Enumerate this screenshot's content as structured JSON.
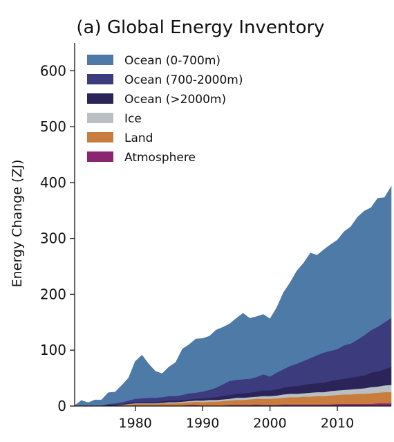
{
  "chart_data": {
    "type": "area",
    "stacked": true,
    "title": "(a) Global Energy Inventory",
    "xlabel": "",
    "ylabel": "Energy Change (ZJ)",
    "xlim": [
      1971,
      2018
    ],
    "ylim": [
      0,
      650
    ],
    "xticks": [
      1980,
      1990,
      2000,
      2010
    ],
    "yticks": [
      0,
      100,
      200,
      300,
      400,
      500,
      600
    ],
    "grid": false,
    "legend_position": "top-left",
    "x": [
      1971,
      1972,
      1973,
      1974,
      1975,
      1976,
      1977,
      1978,
      1979,
      1980,
      1981,
      1982,
      1983,
      1984,
      1985,
      1986,
      1987,
      1988,
      1989,
      1990,
      1991,
      1992,
      1993,
      1994,
      1995,
      1996,
      1997,
      1998,
      1999,
      2000,
      2001,
      2002,
      2003,
      2004,
      2005,
      2006,
      2007,
      2008,
      2009,
      2010,
      2011,
      2012,
      2013,
      2014,
      2015,
      2016,
      2017,
      2018
    ],
    "series": [
      {
        "name": "Atmosphere",
        "color": "#8b2471",
        "values": [
          0,
          0,
          0,
          0,
          0,
          0,
          0,
          0,
          1,
          1,
          1,
          1,
          1,
          1,
          1,
          1,
          1,
          2,
          2,
          1,
          1,
          1,
          1,
          2,
          2,
          2,
          2,
          3,
          2,
          2,
          2,
          3,
          3,
          3,
          3,
          3,
          3,
          3,
          3,
          4,
          4,
          4,
          4,
          4,
          4,
          5,
          5,
          5
        ]
      },
      {
        "name": "Land",
        "color": "#c97d3d",
        "values": [
          0,
          0,
          0,
          0,
          0,
          1,
          1,
          2,
          2,
          3,
          3,
          3,
          3,
          4,
          4,
          4,
          5,
          5,
          6,
          6,
          7,
          7,
          8,
          8,
          9,
          9,
          10,
          10,
          11,
          11,
          12,
          12,
          13,
          13,
          14,
          14,
          15,
          15,
          16,
          16,
          17,
          17,
          18,
          18,
          19,
          19,
          20,
          20
        ]
      },
      {
        "name": "Ice",
        "color": "#b9bfc2",
        "values": [
          0,
          0,
          0,
          0,
          0,
          0,
          0,
          0,
          1,
          1,
          1,
          1,
          1,
          1,
          2,
          2,
          2,
          2,
          2,
          3,
          3,
          3,
          3,
          3,
          4,
          4,
          4,
          4,
          5,
          5,
          5,
          6,
          6,
          6,
          6,
          7,
          7,
          7,
          8,
          8,
          8,
          9,
          9,
          10,
          11,
          11,
          12,
          13
        ]
      },
      {
        "name": "Ocean (>2000m)",
        "color": "#2b2459",
        "values": [
          0,
          0,
          0,
          0,
          0,
          1,
          1,
          1,
          2,
          2,
          2,
          2,
          2,
          3,
          3,
          3,
          3,
          3,
          3,
          4,
          4,
          5,
          6,
          7,
          7,
          8,
          8,
          9,
          10,
          10,
          11,
          12,
          13,
          14,
          15,
          16,
          16,
          17,
          18,
          19,
          20,
          21,
          22,
          23,
          26,
          27,
          29,
          32
        ]
      },
      {
        "name": "Ocean (700-2000m)",
        "color": "#3b3b7e",
        "values": [
          0,
          0,
          1,
          1,
          1,
          2,
          3,
          4,
          4,
          6,
          7,
          8,
          8,
          7,
          8,
          8,
          9,
          11,
          11,
          12,
          14,
          17,
          21,
          25,
          25,
          25,
          25,
          26,
          29,
          25,
          30,
          33,
          37,
          40,
          43,
          46,
          50,
          54,
          54,
          55,
          60,
          61,
          66,
          72,
          76,
          80,
          84,
          88
        ]
      },
      {
        "name": "Ocean (0-700m)",
        "color": "#4e7aa8",
        "values": [
          1,
          10,
          5,
          10,
          10,
          20,
          20,
          30,
          40,
          67,
          77,
          60,
          47,
          42,
          52,
          60,
          82,
          87,
          96,
          95,
          96,
          103,
          102,
          102,
          110,
          118,
          108,
          108,
          107,
          103,
          116,
          137,
          149,
          166,
          175,
          188,
          179,
          184,
          190,
          195,
          203,
          209,
          219,
          222,
          219,
          230,
          223,
          235
        ]
      }
    ]
  }
}
